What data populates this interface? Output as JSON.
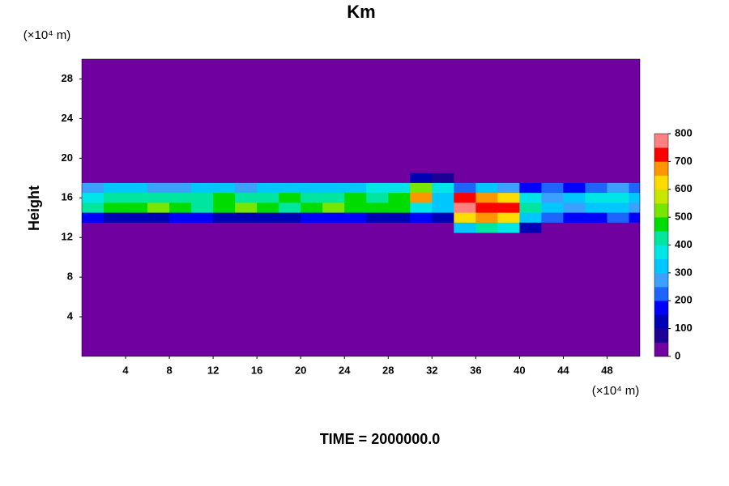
{
  "chart_data": {
    "type": "heatmap",
    "title": "Km",
    "y_unit": "(×10⁴ m)",
    "x_unit": "(×10⁴ m)",
    "ylabel": "Height",
    "footer": "TIME = 2000000.0",
    "xlim": [
      0,
      51
    ],
    "ylim": [
      0,
      30
    ],
    "xticks": [
      4,
      8,
      12,
      16,
      20,
      24,
      28,
      32,
      36,
      40,
      44,
      48
    ],
    "yticks": [
      4,
      8,
      12,
      16,
      20,
      24,
      28
    ],
    "zlim": [
      0,
      800
    ],
    "zticks": [
      0,
      100,
      200,
      300,
      400,
      500,
      600,
      700,
      800
    ],
    "colors": [
      "#7000a0",
      "#1e0096",
      "#0000b4",
      "#0000ff",
      "#1e64ff",
      "#3ca0ff",
      "#00c8ff",
      "#00e6e6",
      "#00e6a0",
      "#00dc00",
      "#78e600",
      "#c8e600",
      "#ffdc00",
      "#ff9600",
      "#ff0000",
      "#ff8080"
    ],
    "x": [
      1,
      3,
      5,
      7,
      9,
      11,
      13,
      15,
      17,
      19,
      21,
      23,
      25,
      27,
      29,
      31,
      33,
      35,
      37,
      39,
      41,
      43,
      45,
      47,
      49,
      51
    ],
    "y": [
      18,
      17,
      16,
      15,
      14,
      13
    ],
    "z": [
      [
        0,
        0,
        0,
        0,
        0,
        0,
        0,
        0,
        0,
        0,
        0,
        0,
        0,
        0,
        0,
        100,
        50,
        0,
        0,
        0,
        0,
        0,
        0,
        0,
        0,
        0
      ],
      [
        250,
        300,
        300,
        250,
        250,
        300,
        300,
        250,
        300,
        300,
        300,
        300,
        300,
        350,
        350,
        500,
        350,
        200,
        300,
        250,
        150,
        200,
        150,
        200,
        250,
        200
      ],
      [
        350,
        400,
        400,
        400,
        400,
        400,
        450,
        400,
        400,
        450,
        400,
        400,
        450,
        400,
        450,
        650,
        300,
        700,
        650,
        600,
        350,
        250,
        300,
        350,
        350,
        300
      ],
      [
        400,
        450,
        450,
        500,
        450,
        400,
        450,
        500,
        450,
        400,
        450,
        500,
        450,
        450,
        450,
        350,
        300,
        750,
        700,
        700,
        400,
        300,
        250,
        300,
        300,
        250
      ],
      [
        150,
        100,
        100,
        100,
        150,
        150,
        100,
        100,
        100,
        100,
        150,
        150,
        150,
        100,
        100,
        150,
        100,
        600,
        650,
        600,
        300,
        200,
        150,
        150,
        200,
        150
      ],
      [
        0,
        0,
        0,
        0,
        0,
        0,
        0,
        0,
        0,
        0,
        0,
        0,
        0,
        0,
        0,
        0,
        0,
        300,
        400,
        350,
        100,
        0,
        0,
        0,
        0,
        0
      ]
    ]
  }
}
